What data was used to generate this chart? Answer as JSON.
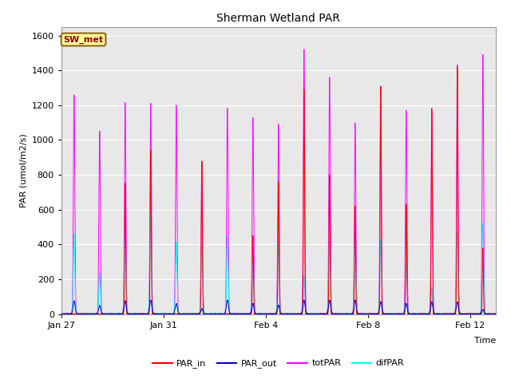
{
  "title": "Sherman Wetland PAR",
  "ylabel": "PAR (umol/m2/s)",
  "xlabel": "Time",
  "annotation": "SW_met",
  "annotation_color": "#8B0000",
  "annotation_bg": "#FFFF99",
  "annotation_border": "#8B6914",
  "series_colors": {
    "PAR_in": "#FF0000",
    "PAR_out": "#0000CC",
    "totPAR": "#FF00FF",
    "difPAR": "#00FFFF"
  },
  "ylim": [
    0,
    1650
  ],
  "yticks": [
    0,
    200,
    400,
    600,
    800,
    1000,
    1200,
    1400,
    1600
  ],
  "bg_color": "#E8E8E8",
  "grid_color": "#FFFFFF",
  "n_days": 17,
  "n_pts": 8160,
  "day_peaks_totPAR": [
    1260,
    1050,
    1215,
    1210,
    1200,
    870,
    1180,
    1130,
    1090,
    1520,
    1360,
    1100,
    1310,
    1170,
    1165,
    1430,
    1490
  ],
  "day_peaks_PAR_in": [
    0,
    0,
    750,
    940,
    0,
    880,
    0,
    450,
    760,
    1290,
    800,
    620,
    1310,
    630,
    1180,
    1420,
    380
  ],
  "day_peaks_difPAR": [
    460,
    240,
    500,
    580,
    410,
    400,
    450,
    370,
    400,
    220,
    420,
    440,
    430,
    290,
    150,
    470,
    520
  ],
  "day_peaks_PAR_out": [
    75,
    50,
    75,
    80,
    60,
    30,
    80,
    60,
    50,
    80,
    80,
    80,
    70,
    60,
    70,
    70,
    25
  ],
  "xtick_positions": [
    0,
    4,
    8,
    12,
    16
  ],
  "xtick_labels": [
    "Jan 27",
    "Jan 31",
    "Feb 4",
    "Feb 8",
    "Feb 12"
  ]
}
